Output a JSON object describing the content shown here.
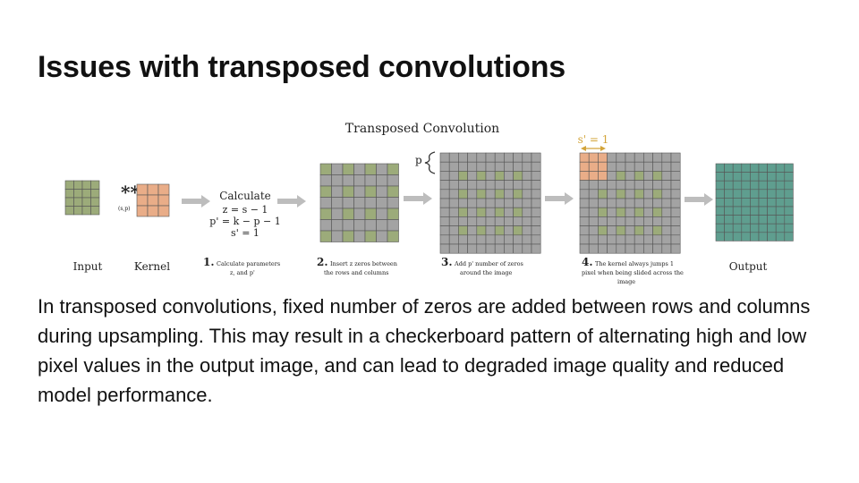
{
  "slide": {
    "title": "Issues with transposed convolutions",
    "body": "In transposed convolutions, fixed number of zeros are added between rows and columns during upsampling. This may result in a checkerboard pattern of alternating high and low pixel values in the output image, and can lead to degraded image quality and reduced model performance."
  },
  "figure": {
    "title": "Transposed Convolution",
    "operator": "**",
    "operator_sub": "(s,p)",
    "input_label": "Input",
    "kernel_label": "Kernel",
    "output_label": "Output",
    "params": {
      "heading": "Calculate",
      "line1": "z  = s − 1",
      "line2": "p' = k − p − 1",
      "line3": "s' = 1"
    },
    "p_label": "p",
    "stride_label": "s' = 1",
    "steps": [
      {
        "num": "1.",
        "line1": "Calculate parameters",
        "line2": "z, and p'"
      },
      {
        "num": "2.",
        "line1": "Insert z zeros between",
        "line2": "the rows and columns"
      },
      {
        "num": "3.",
        "line1": "Add p' number of zeros",
        "line2": "around the image"
      },
      {
        "num": "4.",
        "line1": "The kernel always jumps 1",
        "line2": "pixel when being slided across the",
        "line3": "image"
      }
    ],
    "colors": {
      "input": "#9cab7a",
      "kernel": "#e9ad88",
      "output": "#5f9e8f",
      "gray": "#a3a3a3",
      "grid_line": "#555555",
      "arrow": "#bdbdbd",
      "stride": "#d3a43a"
    }
  }
}
